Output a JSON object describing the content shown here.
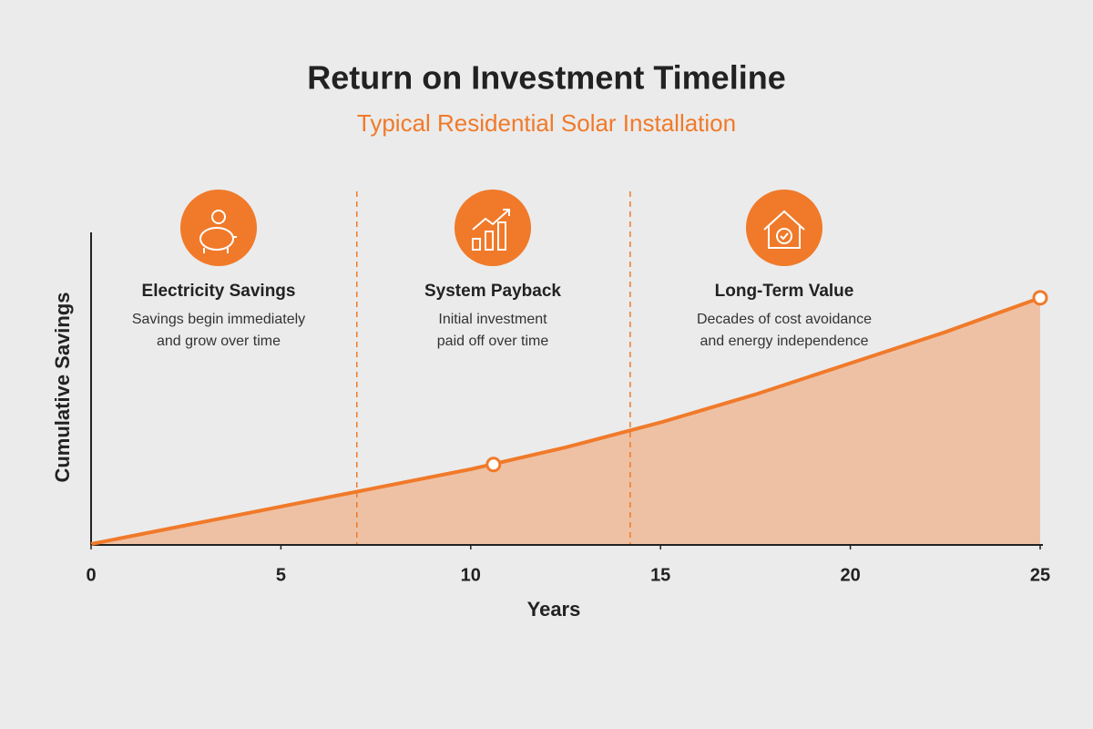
{
  "chart_data": {
    "type": "area",
    "title": "Return on Investment Timeline",
    "subtitle": "Typical Residential Solar Installation",
    "x_label": "Years",
    "y_label": "Cumulative Savings",
    "x": [
      0,
      2.5,
      5,
      7.5,
      10,
      12.5,
      15,
      17.5,
      20,
      22.5,
      25
    ],
    "values": [
      0,
      6,
      12,
      18,
      24,
      31,
      39,
      48,
      58,
      68,
      79
    ],
    "color": "#f07a2a",
    "fill_color": "#efc1a4",
    "xlim": [
      0,
      25
    ],
    "xticks": [
      0,
      5,
      10,
      15,
      20,
      25
    ],
    "ylim": [
      0,
      100
    ],
    "highlight_points": {
      "x": [
        10.6,
        25
      ],
      "values": [
        25.5,
        79
      ]
    },
    "phase_dividers": [
      7,
      14.2
    ],
    "phases": [
      {
        "title": "Electricity Savings",
        "description": [
          "Savings begin immediately",
          "and grow over time"
        ]
      },
      {
        "title": "System Payback",
        "description": [
          "Initial investment",
          "paid off over time"
        ]
      },
      {
        "title": "Long-Term Value",
        "description": [
          "Decades of cost avoidance",
          "and energy independence"
        ]
      }
    ]
  }
}
